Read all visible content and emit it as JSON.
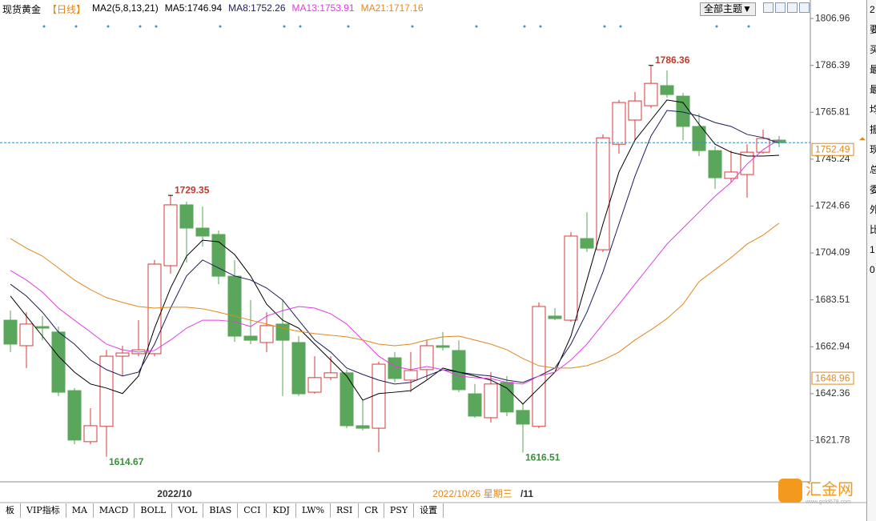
{
  "header": {
    "symbol": "现货黄金",
    "period": "【日线】",
    "indicator": "MA2(5,8,13,21)",
    "theme_menu": "全部主题▼"
  },
  "chart_data": {
    "type": "candlestick",
    "open": [
      1674.6,
      1663.4,
      1671.8,
      1669.4,
      1643.7,
      1621.3,
      1628.0,
      1658.8,
      1659.9,
      1659.9,
      1698.5,
      1725.2,
      1715.0,
      1712.2,
      1693.9,
      1667.6,
      1664.8,
      1672.9,
      1664.8,
      1643.0,
      1649.4,
      1651.5,
      1628.3,
      1627.2,
      1658.1,
      1648.3,
      1652.9,
      1663.4,
      1661.3,
      1642.3,
      1631.8,
      1647.3,
      1635.0,
      1628.0,
      1676.4,
      1674.6,
      1710.4,
      1705.5,
      1751.8,
      1762.4,
      1768.7,
      1777.5,
      1772.9,
      1759.6,
      1749.0,
      1736.8,
      1738.5,
      1748.3,
      1753.6
    ],
    "high": [
      1678.8,
      1678.1,
      1676.4,
      1671.8,
      1644.8,
      1636.0,
      1661.6,
      1663.4,
      1674.6,
      1701.0,
      1729.35,
      1726.6,
      1724.5,
      1713.9,
      1700.9,
      1683.4,
      1678.1,
      1683.4,
      1667.6,
      1658.8,
      1658.8,
      1652.9,
      1639.5,
      1656.4,
      1660.6,
      1660.6,
      1665.8,
      1669.4,
      1665.8,
      1646.6,
      1651.8,
      1650.1,
      1637.8,
      1682.4,
      1679.9,
      1713.2,
      1722.0,
      1756.1,
      1771.2,
      1774.7,
      1786.36,
      1784.2,
      1774.3,
      1765.2,
      1750.8,
      1749.0,
      1751.8,
      1758.2,
      1755.4
    ],
    "low": [
      1660.6,
      1653.6,
      1665.8,
      1641.3,
      1620.2,
      1620.2,
      1614.67,
      1650.1,
      1658.8,
      1658.8,
      1695.0,
      1699.9,
      1706.9,
      1690.4,
      1665.1,
      1664.1,
      1660.6,
      1641.3,
      1641.3,
      1642.3,
      1648.3,
      1627.2,
      1626.2,
      1616.7,
      1647.3,
      1643.0,
      1648.3,
      1661.3,
      1643.0,
      1631.8,
      1629.7,
      1632.5,
      1616.51,
      1627.2,
      1674.6,
      1673.9,
      1704.5,
      1704.5,
      1747.6,
      1753.6,
      1767.6,
      1772.2,
      1753.6,
      1746.6,
      1732.2,
      1735.0,
      1728.3,
      1747.6,
      1750.5
    ],
    "close": [
      1664.1,
      1672.9,
      1671.1,
      1643.0,
      1622.0,
      1628.3,
      1658.8,
      1660.2,
      1661.6,
      1699.2,
      1725.2,
      1715.0,
      1711.5,
      1693.9,
      1667.6,
      1665.8,
      1672.2,
      1665.8,
      1642.3,
      1649.4,
      1651.5,
      1628.3,
      1627.2,
      1655.3,
      1649.0,
      1652.5,
      1663.4,
      1662.7,
      1644.1,
      1632.5,
      1646.6,
      1634.3,
      1629.0,
      1680.6,
      1675.3,
      1711.5,
      1706.2,
      1754.6,
      1770.1,
      1770.8,
      1778.5,
      1773.6,
      1759.6,
      1749.0,
      1737.1,
      1739.6,
      1748.3,
      1754.3,
      1752.49
    ],
    "up_color": "#d63a3a",
    "down_color": "#5aa65a",
    "categories": [
      null,
      null,
      null,
      null,
      null,
      null,
      null,
      null,
      null,
      null,
      "2022/10",
      null,
      null,
      null,
      null,
      null,
      null,
      null,
      null,
      null,
      null,
      null,
      null,
      null,
      null,
      null,
      null,
      null,
      null,
      null,
      null,
      null,
      "/11",
      null,
      null,
      null,
      null,
      null,
      null,
      null,
      null,
      null,
      null,
      null,
      null,
      null,
      null,
      null,
      null
    ],
    "cursor_date": "2022/10/26 星期三",
    "series": [
      {
        "name": "MA5:1746.94",
        "color": "#000000",
        "values": [
          1685.2,
          1676.4,
          1667.6,
          1658.8,
          1651.8,
          1646.6,
          1644.8,
          1642.4,
          1650.1,
          1671.1,
          1688.7,
          1702.7,
          1709.7,
          1709.0,
          1703.4,
          1694.0,
          1681.6,
          1674.6,
          1671.1,
          1664.1,
          1657.1,
          1650.1,
          1639.5,
          1642.4,
          1643.0,
          1643.7,
          1648.3,
          1653.6,
          1651.8,
          1650.1,
          1648.3,
          1644.8,
          1637.8,
          1644.8,
          1651.8,
          1667.6,
          1692.2,
          1716.8,
          1739.6,
          1753.6,
          1762.4,
          1771.2,
          1770.1,
          1760.6,
          1751.8,
          1748.3,
          1746.6,
          1746.6,
          1746.94
        ]
      },
      {
        "name": "MA8:1752.26",
        "color": "#1c1c5c",
        "values": [
          1690.4,
          1685.2,
          1678.1,
          1669.4,
          1664.1,
          1657.1,
          1652.9,
          1650.1,
          1651.8,
          1664.1,
          1679.9,
          1694.0,
          1701.0,
          1697.5,
          1694.0,
          1692.2,
          1688.7,
          1683.4,
          1674.6,
          1665.9,
          1660.6,
          1653.6,
          1650.8,
          1648.3,
          1646.6,
          1647.3,
          1650.1,
          1652.9,
          1651.8,
          1650.8,
          1650.1,
          1648.3,
          1647.3,
          1650.1,
          1653.6,
          1664.1,
          1678.1,
          1695.7,
          1716.8,
          1737.8,
          1755.4,
          1766.6,
          1765.9,
          1764.1,
          1761.3,
          1759.6,
          1756.1,
          1754.7,
          1752.26
        ]
      },
      {
        "name": "MA13:1753.91",
        "color": "#e03ce0",
        "values": [
          1696.4,
          1692.2,
          1686.9,
          1679.9,
          1674.6,
          1669.4,
          1664.1,
          1661.6,
          1660.6,
          1661.3,
          1665.9,
          1671.1,
          1674.6,
          1674.6,
          1673.9,
          1671.8,
          1676.4,
          1678.8,
          1680.6,
          1679.9,
          1677.4,
          1672.9,
          1665.9,
          1658.8,
          1654.3,
          1652.9,
          1654.3,
          1652.9,
          1650.1,
          1649.4,
          1649.0,
          1647.3,
          1646.6,
          1650.1,
          1651.8,
          1657.1,
          1664.1,
          1672.9,
          1681.6,
          1690.4,
          1699.2,
          1708.0,
          1715.0,
          1722.0,
          1729.0,
          1735.0,
          1743.1,
          1749.4,
          1753.91
        ]
      },
      {
        "name": "MA21:1717.16",
        "color": "#e0881c",
        "values": [
          1710.4,
          1706.2,
          1702.7,
          1697.5,
          1692.2,
          1688.0,
          1684.5,
          1682.4,
          1680.6,
          1679.9,
          1680.3,
          1680.3,
          1679.6,
          1678.1,
          1676.4,
          1674.6,
          1672.9,
          1671.1,
          1669.7,
          1668.7,
          1668.0,
          1667.3,
          1665.9,
          1664.1,
          1663.4,
          1664.1,
          1665.9,
          1667.3,
          1667.6,
          1665.9,
          1664.1,
          1661.6,
          1657.8,
          1654.6,
          1653.6,
          1653.6,
          1654.6,
          1657.1,
          1660.6,
          1665.9,
          1670.4,
          1675.3,
          1681.6,
          1691.5,
          1696.8,
          1702.0,
          1708.0,
          1711.9,
          1717.16
        ]
      }
    ],
    "annotations": [
      "1786.36",
      "1729.35",
      "1614.67",
      "1616.51"
    ],
    "last_price": 1752.49,
    "axis_marker": 1648.96,
    "ylim": [
      1604.4,
      1809.8
    ],
    "yticks": [
      1806.96,
      1786.39,
      1765.81,
      1745.24,
      1724.66,
      1704.09,
      1683.51,
      1662.94,
      1642.36,
      1621.78
    ]
  },
  "tabs": [
    "板",
    "VIP指标",
    "MA",
    "MACD",
    "BOLL",
    "VOL",
    "BIAS",
    "CCI",
    "KDJ",
    "LW%",
    "RSI",
    "CR",
    "PSY",
    "设置"
  ],
  "side_panel": [
    "2",
    "要",
    "买",
    "最",
    "最",
    "均",
    "振",
    "现",
    "总",
    "委",
    "外",
    "比",
    "1",
    "0"
  ],
  "watermark": {
    "name": "汇金网",
    "url": "www.gold678.com"
  }
}
